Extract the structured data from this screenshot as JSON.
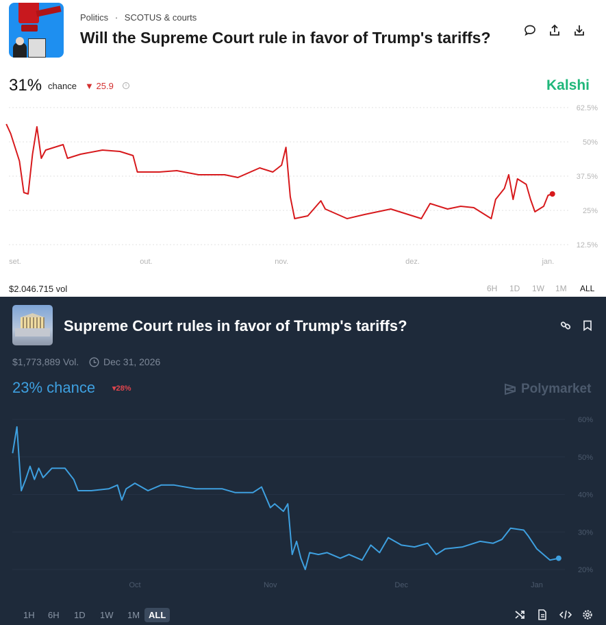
{
  "kalshi": {
    "breadcrumb": {
      "category": "Politics",
      "separator": "·",
      "subcategory": "SCOTUS & courts"
    },
    "title": "Will the Supreme Court rule in favor of Trump's tariffs?",
    "header_icons": [
      "comment-icon",
      "share-icon",
      "download-icon"
    ],
    "chance_value": "31%",
    "chance_label": "chance",
    "delta_arrow": "▼",
    "delta": "25.9",
    "brand": "Kalshi",
    "brand_color": "#1fb77a",
    "line_color": "#d7191c",
    "volume": "$2.046.715 vol",
    "ranges": [
      "6H",
      "1D",
      "1W",
      "1M",
      "ALL"
    ],
    "active_range": "ALL"
  },
  "polymarket": {
    "title": "Supreme Court rules in favor of Trump's tariffs?",
    "header_icons": [
      "link-icon",
      "bookmark-icon"
    ],
    "volume": "$1,773,889 Vol.",
    "end_date": "Dec 31, 2026",
    "chance": "23% chance",
    "delta_arrow": "▾",
    "delta": "28%",
    "brand": "Polymarket",
    "line_color": "#3ea0e0",
    "ranges": [
      "1H",
      "6H",
      "1D",
      "1W",
      "1M",
      "ALL"
    ],
    "active_range": "ALL",
    "footer_icons": [
      "shuffle-icon",
      "document-icon",
      "embed-code-icon",
      "settings-icon"
    ]
  },
  "chart_data": [
    {
      "type": "line",
      "title": "",
      "xlabel": "",
      "ylabel": "",
      "x_ticks": [
        {
          "date": "2025-09-01",
          "label": "set."
        },
        {
          "date": "2025-10-01",
          "label": "out."
        },
        {
          "date": "2025-11-01",
          "label": "nov."
        },
        {
          "date": "2025-12-01",
          "label": "dez."
        },
        {
          "date": "2026-01-01",
          "label": "jan."
        }
      ],
      "y_ticks": [
        62.5,
        50,
        37.5,
        25,
        12.5
      ],
      "y_tick_labels": [
        "62.5%",
        "50%",
        "37.5%",
        "25%",
        "12.5%"
      ],
      "ylim": [
        12.5,
        62.5
      ],
      "grid": true,
      "y_axis_side": "right",
      "series": [
        {
          "x": [
            "2025-08-30",
            "2025-08-31",
            "2025-09-02",
            "2025-09-03",
            "2025-09-04",
            "2025-09-05",
            "2025-09-06",
            "2025-09-07",
            "2025-09-08",
            "2025-09-10",
            "2025-09-12",
            "2025-09-13",
            "2025-09-16",
            "2025-09-21",
            "2025-09-25",
            "2025-09-28",
            "2025-09-29",
            "2025-10-04",
            "2025-10-08",
            "2025-10-13",
            "2025-10-19",
            "2025-10-22",
            "2025-10-27",
            "2025-10-30",
            "2025-11-01",
            "2025-11-02",
            "2025-11-03",
            "2025-11-04",
            "2025-11-07",
            "2025-11-10",
            "2025-11-11",
            "2025-11-16",
            "2025-11-20",
            "2025-11-26",
            "2025-12-01",
            "2025-12-03",
            "2025-12-05",
            "2025-12-09",
            "2025-12-12",
            "2025-12-15",
            "2025-12-19",
            "2025-12-20",
            "2025-12-22",
            "2025-12-23",
            "2025-12-24",
            "2025-12-25",
            "2025-12-27",
            "2025-12-28",
            "2025-12-29",
            "2025-12-31",
            "2026-01-01",
            "2026-01-02"
          ],
          "y": [
            56.5,
            53,
            43,
            31.5,
            31,
            45.5,
            55.5,
            44,
            47,
            48,
            49,
            44,
            45.5,
            47,
            46.5,
            45,
            39,
            39,
            39.5,
            38,
            38,
            37,
            40.5,
            39,
            41.5,
            48,
            30,
            22,
            23,
            28.5,
            25.5,
            22,
            23.5,
            25.5,
            23,
            22,
            27.5,
            25.5,
            26.5,
            26,
            22,
            29,
            33,
            38,
            29,
            36.5,
            34.5,
            29,
            24.5,
            26.5,
            30.5,
            31
          ]
        }
      ]
    },
    {
      "type": "line",
      "title": "",
      "xlabel": "",
      "ylabel": "",
      "x_ticks": [
        {
          "date": "2025-10-01",
          "label": "Oct"
        },
        {
          "date": "2025-11-01",
          "label": "Nov"
        },
        {
          "date": "2025-12-01",
          "label": "Dec"
        },
        {
          "date": "2026-01-01",
          "label": "Jan"
        }
      ],
      "y_ticks": [
        60,
        50,
        40,
        30,
        20
      ],
      "y_tick_labels": [
        "60%",
        "50%",
        "40%",
        "30%",
        "20%"
      ],
      "ylim": [
        20,
        60
      ],
      "grid": true,
      "y_axis_side": "right",
      "series": [
        {
          "x": [
            "2025-09-03",
            "2025-09-04",
            "2025-09-05",
            "2025-09-06",
            "2025-09-07",
            "2025-09-08",
            "2025-09-09",
            "2025-09-10",
            "2025-09-12",
            "2025-09-15",
            "2025-09-17",
            "2025-09-18",
            "2025-09-21",
            "2025-09-25",
            "2025-09-27",
            "2025-09-28",
            "2025-09-29",
            "2025-10-01",
            "2025-10-04",
            "2025-10-07",
            "2025-10-10",
            "2025-10-15",
            "2025-10-21",
            "2025-10-24",
            "2025-10-28",
            "2025-10-30",
            "2025-11-01",
            "2025-11-02",
            "2025-11-04",
            "2025-11-05",
            "2025-11-06",
            "2025-11-07",
            "2025-11-08",
            "2025-11-09",
            "2025-11-10",
            "2025-11-12",
            "2025-11-14",
            "2025-11-17",
            "2025-11-19",
            "2025-11-22",
            "2025-11-24",
            "2025-11-26",
            "2025-11-28",
            "2025-12-01",
            "2025-12-04",
            "2025-12-07",
            "2025-12-09",
            "2025-12-11",
            "2025-12-15",
            "2025-12-19",
            "2025-12-22",
            "2025-12-24",
            "2025-12-26",
            "2025-12-29",
            "2025-12-30",
            "2026-01-01",
            "2026-01-03",
            "2026-01-04",
            "2026-01-06"
          ],
          "y": [
            51,
            58,
            41,
            44,
            47.5,
            44,
            47,
            44.5,
            47,
            47,
            44,
            41,
            41,
            41.5,
            42.5,
            38.5,
            41.5,
            43,
            41,
            42.5,
            42.5,
            41.5,
            41.5,
            40.5,
            40.5,
            42,
            36.5,
            37.5,
            35.5,
            37.5,
            24,
            27.5,
            23,
            20,
            24.5,
            24,
            24.5,
            23,
            24,
            22.5,
            26.5,
            24.5,
            28.5,
            26.5,
            26,
            27,
            24,
            25.5,
            26,
            27.5,
            27,
            28,
            31,
            30.5,
            29,
            25.5,
            23.5,
            22.5,
            23
          ]
        }
      ]
    }
  ]
}
